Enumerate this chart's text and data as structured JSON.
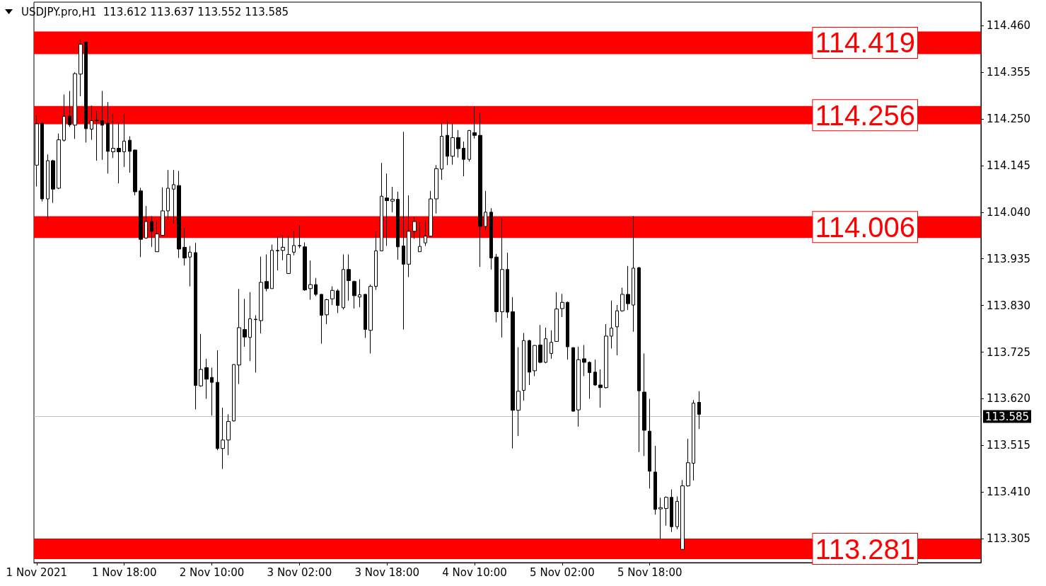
{
  "chart_data": {
    "type": "candlestick",
    "title": "USDJPY.pro,H1  113.612 113.637 113.552 113.585",
    "color": "#000000",
    "categories": [
      "1 Nov 2021",
      null,
      null,
      null,
      null,
      null,
      null,
      null,
      null,
      null,
      null,
      null,
      null,
      null,
      null,
      null,
      "1 Nov 18:00",
      null,
      null,
      null,
      null,
      null,
      null,
      null,
      null,
      null,
      null,
      null,
      null,
      null,
      null,
      null,
      "2 Nov 10:00",
      null,
      null,
      null,
      null,
      null,
      null,
      null,
      null,
      null,
      null,
      null,
      null,
      null,
      null,
      null,
      "3 Nov 02:00",
      null,
      null,
      null,
      null,
      null,
      null,
      null,
      null,
      null,
      null,
      null,
      null,
      null,
      null,
      null,
      "3 Nov 18:00",
      null,
      null,
      null,
      null,
      null,
      null,
      null,
      null,
      null,
      null,
      null,
      null,
      null,
      null,
      null,
      "4 Nov 10:00",
      null,
      null,
      null,
      null,
      null,
      null,
      null,
      null,
      null,
      null,
      null,
      null,
      null,
      null,
      null,
      "5 Nov 02:00",
      null,
      null,
      null,
      null,
      null,
      null,
      null,
      null,
      null,
      null,
      null,
      null,
      null,
      null,
      null,
      "5 Nov 18:00",
      null,
      null,
      null,
      null,
      null,
      null,
      null,
      null,
      null,
      null,
      null,
      null,
      null,
      null,
      null,
      null,
      null,
      null,
      null,
      null,
      null,
      null,
      null,
      null,
      null,
      null,
      null,
      null,
      null,
      null,
      null,
      null,
      null,
      null,
      null,
      null,
      null,
      null,
      null,
      null,
      null,
      null,
      null,
      null,
      null,
      null,
      null,
      null,
      null,
      null,
      null,
      null,
      null,
      null,
      null,
      null,
      null,
      null,
      null,
      null
    ],
    "ohlc": [
      [
        114.146,
        114.258,
        114.098,
        114.239
      ],
      [
        114.24,
        114.242,
        114.064,
        114.07
      ],
      [
        114.07,
        114.17,
        114.023,
        114.156
      ],
      [
        114.156,
        114.158,
        114.061,
        114.092
      ],
      [
        114.094,
        114.217,
        114.092,
        114.203
      ],
      [
        114.202,
        114.305,
        114.199,
        114.256
      ],
      [
        114.256,
        114.313,
        114.232,
        114.237
      ],
      [
        114.236,
        114.355,
        114.205,
        114.352
      ],
      [
        114.351,
        114.429,
        114.301,
        114.418
      ],
      [
        114.423,
        114.424,
        114.197,
        114.228
      ],
      [
        114.227,
        114.28,
        114.203,
        114.246
      ],
      [
        114.246,
        114.268,
        114.156,
        114.247
      ],
      [
        114.246,
        114.313,
        114.158,
        114.236
      ],
      [
        114.24,
        114.288,
        114.127,
        114.177
      ],
      [
        114.176,
        114.262,
        114.162,
        114.184
      ],
      [
        114.184,
        114.242,
        114.105,
        114.176
      ],
      [
        114.176,
        114.262,
        114.142,
        114.2
      ],
      [
        114.202,
        114.211,
        114.129,
        114.177
      ],
      [
        114.18,
        114.181,
        114.078,
        114.086
      ],
      [
        114.088,
        114.095,
        113.939,
        113.979
      ],
      [
        113.982,
        114.054,
        113.98,
        114.019
      ],
      [
        114.019,
        114.031,
        113.962,
        113.997
      ],
      [
        113.951,
        114.023,
        113.951,
        113.991
      ],
      [
        113.988,
        114.096,
        113.986,
        114.043
      ],
      [
        114.043,
        114.135,
        114.023,
        114.094
      ],
      [
        114.092,
        114.135,
        114.014,
        114.102
      ],
      [
        114.1,
        114.133,
        113.937,
        113.957
      ],
      [
        113.961,
        114.004,
        113.92,
        113.937
      ],
      [
        113.939,
        113.964,
        113.873,
        113.95
      ],
      [
        113.949,
        113.971,
        113.596,
        113.65
      ],
      [
        113.649,
        113.766,
        113.647,
        113.686
      ],
      [
        113.69,
        113.71,
        113.62,
        113.664
      ],
      [
        113.668,
        113.69,
        113.582,
        113.657
      ],
      [
        113.657,
        113.729,
        113.504,
        113.508
      ],
      [
        113.508,
        113.6,
        113.462,
        113.527
      ],
      [
        113.527,
        113.585,
        113.493,
        113.569
      ],
      [
        113.57,
        113.698,
        113.569,
        113.697
      ],
      [
        113.696,
        113.867,
        113.653,
        113.78
      ],
      [
        113.776,
        113.845,
        113.737,
        113.759
      ],
      [
        113.758,
        113.86,
        113.705,
        113.8
      ],
      [
        113.798,
        113.808,
        113.679,
        113.799
      ],
      [
        113.796,
        113.94,
        113.767,
        113.882
      ],
      [
        113.884,
        113.945,
        113.862,
        113.868
      ],
      [
        113.868,
        113.967,
        113.868,
        113.954
      ],
      [
        113.953,
        113.986,
        113.909,
        113.954
      ],
      [
        113.954,
        113.989,
        113.932,
        113.961
      ],
      [
        113.902,
        113.986,
        113.902,
        113.945
      ],
      [
        113.95,
        113.997,
        113.943,
        113.965
      ],
      [
        113.964,
        114.011,
        113.959,
        113.965
      ],
      [
        113.962,
        113.972,
        113.863,
        113.865
      ],
      [
        113.868,
        113.931,
        113.843,
        113.877
      ],
      [
        113.877,
        113.892,
        113.851,
        113.855
      ],
      [
        113.855,
        113.856,
        113.744,
        113.808
      ],
      [
        113.809,
        113.845,
        113.788,
        113.843
      ],
      [
        113.845,
        113.873,
        113.831,
        113.864
      ],
      [
        113.863,
        113.867,
        113.813,
        113.83
      ],
      [
        113.825,
        113.945,
        113.821,
        113.911
      ],
      [
        113.911,
        113.945,
        113.841,
        113.886
      ],
      [
        113.884,
        113.886,
        113.823,
        113.852
      ],
      [
        113.849,
        113.889,
        113.826,
        113.854
      ],
      [
        113.855,
        113.856,
        113.757,
        113.776
      ],
      [
        113.774,
        113.877,
        113.722,
        113.873
      ],
      [
        113.873,
        113.996,
        113.865,
        113.953
      ],
      [
        113.953,
        114.151,
        113.953,
        114.076
      ],
      [
        114.072,
        114.127,
        113.964,
        114.066
      ],
      [
        114.065,
        114.097,
        114.04,
        114.069
      ],
      [
        114.069,
        114.086,
        113.933,
        113.962
      ],
      [
        113.964,
        114.221,
        113.776,
        113.923
      ],
      [
        113.923,
        114.078,
        113.894,
        113.997
      ],
      [
        113.997,
        114.029,
        113.98,
        114.019
      ],
      [
        113.951,
        114.017,
        113.951,
        113.963
      ],
      [
        113.971,
        114.022,
        113.964,
        113.986
      ],
      [
        113.986,
        114.088,
        113.986,
        114.07
      ],
      [
        114.07,
        114.146,
        114.037,
        114.138
      ],
      [
        114.137,
        114.241,
        114.113,
        114.211
      ],
      [
        114.213,
        114.246,
        114.146,
        114.166
      ],
      [
        114.166,
        114.24,
        114.147,
        114.208
      ],
      [
        114.208,
        114.225,
        114.163,
        114.183
      ],
      [
        114.184,
        114.199,
        114.121,
        114.159
      ],
      [
        114.159,
        114.225,
        114.154,
        114.224
      ],
      [
        114.219,
        114.278,
        114.206,
        114.213
      ],
      [
        114.213,
        114.264,
        113.917,
        114.008
      ],
      [
        114.008,
        114.088,
        114.0,
        114.04
      ],
      [
        114.04,
        114.049,
        113.911,
        113.937
      ],
      [
        113.939,
        113.946,
        113.792,
        113.816
      ],
      [
        113.816,
        114.026,
        113.758,
        113.911
      ],
      [
        113.911,
        113.949,
        113.802,
        113.815
      ],
      [
        113.816,
        113.849,
        113.508,
        113.594
      ],
      [
        113.594,
        113.736,
        113.536,
        113.637
      ],
      [
        113.639,
        113.768,
        113.616,
        113.751
      ],
      [
        113.751,
        113.753,
        113.651,
        113.68
      ],
      [
        113.683,
        113.741,
        113.671,
        113.74
      ],
      [
        113.741,
        113.786,
        113.7,
        113.702
      ],
      [
        113.702,
        113.78,
        113.7,
        113.755
      ],
      [
        113.722,
        113.774,
        113.71,
        113.747
      ],
      [
        113.749,
        113.86,
        113.749,
        113.822
      ],
      [
        113.823,
        113.856,
        113.804,
        113.837
      ],
      [
        113.837,
        113.839,
        113.708,
        113.737
      ],
      [
        113.735,
        113.736,
        113.591,
        113.592
      ],
      [
        113.595,
        113.737,
        113.557,
        113.708
      ],
      [
        113.71,
        113.741,
        113.671,
        113.702
      ],
      [
        113.702,
        113.704,
        113.62,
        113.679
      ],
      [
        113.68,
        113.708,
        113.649,
        113.651
      ],
      [
        113.651,
        113.686,
        113.6,
        113.645
      ],
      [
        113.645,
        113.788,
        113.643,
        113.761
      ],
      [
        113.761,
        113.841,
        113.733,
        113.779
      ],
      [
        113.782,
        113.831,
        113.718,
        113.818
      ],
      [
        113.818,
        113.87,
        113.816,
        113.855
      ],
      [
        113.855,
        113.919,
        113.82,
        113.834
      ],
      [
        113.831,
        114.031,
        113.771,
        113.914
      ],
      [
        113.915,
        113.917,
        113.5,
        113.638
      ],
      [
        113.635,
        113.722,
        113.491,
        113.549
      ],
      [
        113.547,
        113.62,
        113.418,
        113.457
      ],
      [
        113.455,
        113.514,
        113.359,
        113.371
      ],
      [
        113.372,
        113.397,
        113.303,
        113.375
      ],
      [
        113.373,
        113.4,
        113.334,
        113.398
      ],
      [
        113.398,
        113.416,
        113.32,
        113.332
      ],
      [
        113.332,
        113.4,
        113.326,
        113.389
      ],
      [
        113.281,
        113.437,
        113.281,
        113.424
      ],
      [
        113.424,
        113.53,
        113.422,
        113.476
      ],
      [
        113.475,
        113.617,
        113.436,
        113.61
      ],
      [
        113.612,
        113.637,
        113.552,
        113.585
      ],
      null,
      null,
      null,
      null,
      null,
      null,
      null,
      null,
      null,
      null,
      null,
      null,
      null,
      null,
      null,
      null,
      null,
      null,
      null,
      null,
      null,
      null,
      null,
      null,
      null,
      null,
      null,
      null,
      null,
      null,
      null,
      null,
      null,
      null,
      null,
      null,
      null,
      null,
      null,
      null,
      null,
      null,
      null,
      null,
      null,
      null,
      null,
      null,
      null,
      null,
      null
    ],
    "ylim": [
      113.251,
      114.513
    ],
    "yticks": [
      {
        "value": 114.46,
        "label": "114.460"
      },
      {
        "value": 114.355,
        "label": "114.355"
      },
      {
        "value": 114.25,
        "label": "114.250"
      },
      {
        "value": 114.145,
        "label": "114.145"
      },
      {
        "value": 114.04,
        "label": "114.040"
      },
      {
        "value": 113.935,
        "label": "113.935"
      },
      {
        "value": 113.83,
        "label": "113.830"
      },
      {
        "value": 113.725,
        "label": "113.725"
      },
      {
        "value": 113.62,
        "label": "113.620"
      },
      {
        "value": 113.515,
        "label": "113.515"
      },
      {
        "value": 113.41,
        "label": "113.410"
      },
      {
        "value": 113.305,
        "label": "113.305"
      }
    ],
    "ref_lines": [
      {
        "axis": "y",
        "value": 113.585,
        "label": "113.585",
        "color": "#c0c0c0"
      }
    ],
    "bands": [
      {
        "axis": "y",
        "from": 114.396,
        "to": 114.447,
        "label": "114.419",
        "color": "#ff0000"
      },
      {
        "axis": "y",
        "from": 114.238,
        "to": 114.279,
        "label": "114.256",
        "color": "#ff0000"
      },
      {
        "axis": "y",
        "from": 113.982,
        "to": 114.031,
        "label": "114.006",
        "color": "#ff0000"
      },
      {
        "axis": "y",
        "from": 113.259,
        "to": 113.305,
        "label": "113.281",
        "color": "#ff0000"
      }
    ]
  }
}
